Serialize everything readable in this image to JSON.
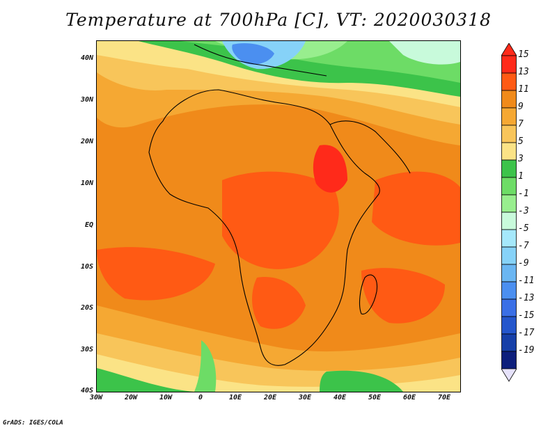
{
  "title": "Temperature at 700hPa [C], VT: 2020030318",
  "credit": "GrADS: IGES/COLA",
  "lat_labels": [
    "40N",
    "30N",
    "20N",
    "10N",
    "EQ",
    "10S",
    "20S",
    "30S",
    "40S"
  ],
  "lon_labels": [
    "30W",
    "20W",
    "10W",
    "0",
    "10E",
    "20E",
    "30E",
    "40E",
    "50E",
    "60E",
    "70E"
  ],
  "colorbar": {
    "labels": [
      "15",
      "13",
      "11",
      "9",
      "7",
      "5",
      "3",
      "1",
      "-1",
      "-3",
      "-5",
      "-7",
      "-9",
      "-11",
      "-13",
      "-15",
      "-17",
      "-19"
    ],
    "colors": [
      "#ff2a1a",
      "#ff5a14",
      "#f08a1a",
      "#f5a833",
      "#f8c55a",
      "#fbe386",
      "#3cc34a",
      "#6ddc66",
      "#98ee8e",
      "#c8fadb",
      "#a5e8fb",
      "#86d2f8",
      "#6ab6f2",
      "#4b8ff0",
      "#3a6fe6",
      "#2456cc",
      "#163fa8",
      "#0d1f7c"
    ]
  }
}
